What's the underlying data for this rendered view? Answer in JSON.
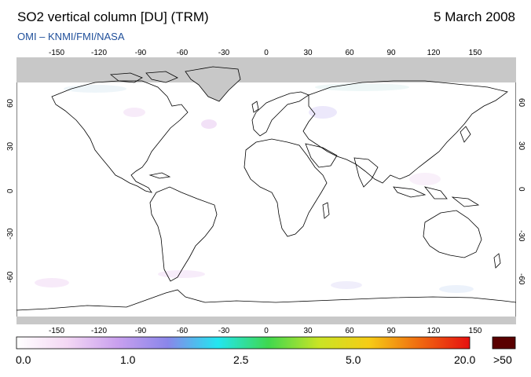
{
  "header": {
    "title": "SO2 vertical column [DU] (TRM)",
    "date": "5 March 2008",
    "source": "OMI  –  KNMI/FMI/NASA"
  },
  "map": {
    "lon_ticks": [
      "-150",
      "-120",
      "-90",
      "-60",
      "-30",
      "0",
      "30",
      "60",
      "90",
      "120",
      "150"
    ],
    "lat_ticks": [
      "60",
      "30",
      "0",
      "-30",
      "-60"
    ],
    "no_data_color": "#c8c8c8",
    "coast_color": "#000000"
  },
  "colorbar": {
    "labels": [
      "0.0",
      "1.0",
      "2.5",
      "5.0",
      "20.0",
      ">50"
    ],
    "colors": [
      "#ffffff",
      "#f4d8f4",
      "#c9a0ee",
      "#8a86ea",
      "#22e6f0",
      "#3fd84f",
      "#c9e425",
      "#f6cc16",
      "#f06a10",
      "#e61010"
    ],
    "overflow_color": "#5a0000"
  }
}
